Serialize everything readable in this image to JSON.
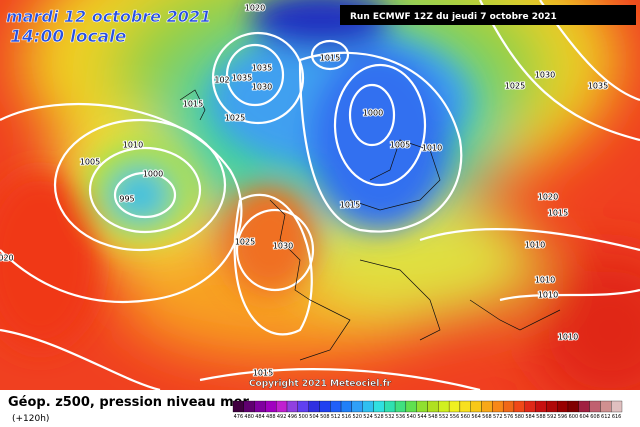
{
  "header": {
    "date": "mardi 12 octobre 2021",
    "time": "14:00 locale",
    "run": "Run ECMWF 12Z du jeudi 7 octobre 2021"
  },
  "footer": {
    "title": "Géop. z500, pression niveau mer",
    "lead": "(+120h)",
    "copyright": "Copyright 2021 Meteociel.fr"
  },
  "isobars": {
    "labels": [
      "1020",
      "1015",
      "1035",
      "1035",
      "102",
      "1030",
      "1015",
      "1025",
      "1000",
      "1005",
      "1010",
      "1010",
      "1005",
      "1000",
      "995",
      "1015",
      "1025",
      "1030",
      "1025",
      "1030",
      "1035",
      "1020",
      "1015",
      "1010",
      "1010",
      "1010",
      "1010",
      "1015",
      "020"
    ]
  },
  "legend": {
    "labels": [
      "476",
      "480",
      "484",
      "488",
      "492",
      "496",
      "500",
      "504",
      "508",
      "512",
      "516",
      "520",
      "524",
      "528",
      "532",
      "536",
      "540",
      "544",
      "548",
      "552",
      "556",
      "560",
      "564",
      "568",
      "572",
      "576",
      "580",
      "584",
      "588",
      "592",
      "596",
      "600",
      "604",
      "608",
      "612",
      "616"
    ]
  }
}
